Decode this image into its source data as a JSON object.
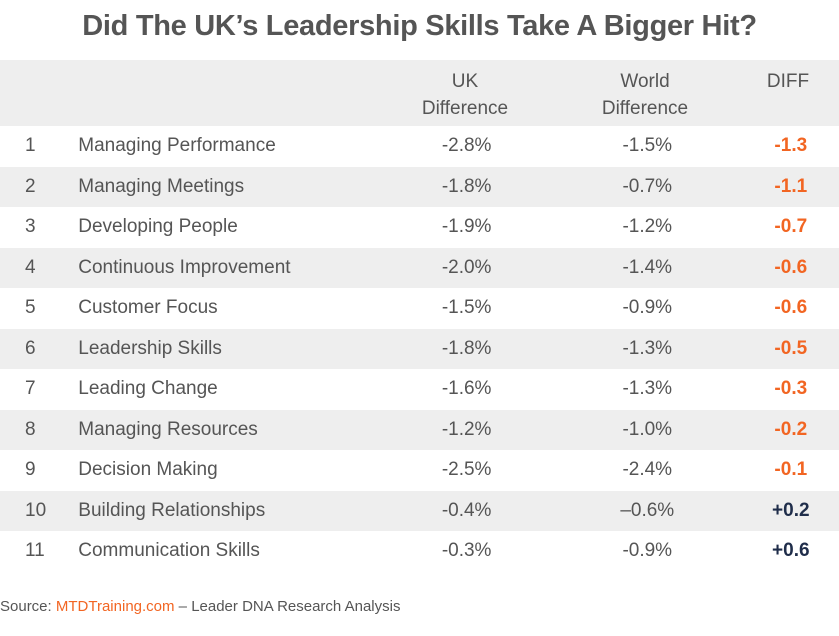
{
  "title": "Did The UK’s Leadership Skills Take A Bigger Hit?",
  "columns": {
    "uk": [
      "UK",
      "Difference"
    ],
    "world": [
      "World",
      "Difference"
    ],
    "diff": "DIFF"
  },
  "colors": {
    "negative": "#f26522",
    "positive": "#1f2d4a",
    "band": "#eeeeee"
  },
  "chart_data": {
    "type": "table",
    "title": "Did The UK’s Leadership Skills Take A Bigger Hit?",
    "headers": [
      "",
      "",
      "UK Difference",
      "World Difference",
      "DIFF"
    ],
    "rows": [
      {
        "num": "1",
        "skill": "Managing Performance",
        "uk": "-2.8%",
        "world": "-1.5%",
        "diff": "-1.3",
        "diff_value": -1.3
      },
      {
        "num": "2",
        "skill": "Managing Meetings",
        "uk": "-1.8%",
        "world": "-0.7%",
        "diff": "-1.1",
        "diff_value": -1.1
      },
      {
        "num": "3",
        "skill": "Developing People",
        "uk": "-1.9%",
        "world": "-1.2%",
        "diff": "-0.7",
        "diff_value": -0.7
      },
      {
        "num": "4",
        "skill": "Continuous Improvement",
        "uk": "-2.0%",
        "world": "-1.4%",
        "diff": "-0.6",
        "diff_value": -0.6
      },
      {
        "num": "5",
        "skill": "Customer Focus",
        "uk": "-1.5%",
        "world": "-0.9%",
        "diff": "-0.6",
        "diff_value": -0.6
      },
      {
        "num": "6",
        "skill": "Leadership Skills",
        "uk": "-1.8%",
        "world": "-1.3%",
        "diff": "-0.5",
        "diff_value": -0.5
      },
      {
        "num": "7",
        "skill": "Leading Change",
        "uk": "-1.6%",
        "world": "-1.3%",
        "diff": "-0.3",
        "diff_value": -0.3
      },
      {
        "num": "8",
        "skill": "Managing Resources",
        "uk": "-1.2%",
        "world": "-1.0%",
        "diff": "-0.2",
        "diff_value": -0.2
      },
      {
        "num": "9",
        "skill": "Decision Making",
        "uk": "-2.5%",
        "world": "-2.4%",
        "diff": "-0.1",
        "diff_value": -0.1
      },
      {
        "num": "10",
        "skill": "Building Relationships",
        "uk": "-0.4%",
        "world": "–0.6%",
        "diff": "+0.2",
        "diff_value": 0.2
      },
      {
        "num": "11",
        "skill": "Communication Skills",
        "uk": "-0.3%",
        "world": "-0.9%",
        "diff": "+0.6",
        "diff_value": 0.6
      }
    ]
  },
  "source": {
    "prefix": "Source: ",
    "link": "MTDTraining.com",
    "suffix": " – Leader DNA Research Analysis"
  }
}
